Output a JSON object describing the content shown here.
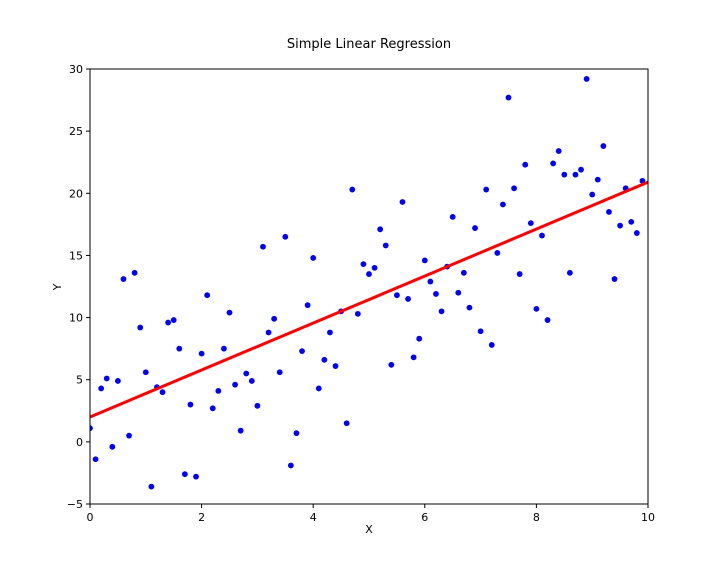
{
  "chart_data": {
    "type": "scatter",
    "title": "Simple Linear Regression",
    "xlabel": "X",
    "ylabel": "Y",
    "xlim": [
      0,
      10
    ],
    "ylim": [
      -5,
      30
    ],
    "xticks": [
      0,
      2,
      4,
      6,
      8,
      10
    ],
    "yticks": [
      -5,
      0,
      5,
      10,
      15,
      20,
      25,
      30
    ],
    "ytick_labels": [
      "−5",
      "0",
      "5",
      "10",
      "15",
      "20",
      "25",
      "30"
    ],
    "grid": false,
    "series": [
      {
        "kind": "scatter",
        "color": "#0000ff",
        "points": [
          [
            0.0,
            1.1
          ],
          [
            0.1,
            -1.4
          ],
          [
            0.2,
            4.3
          ],
          [
            0.3,
            5.1
          ],
          [
            0.4,
            -0.4
          ],
          [
            0.5,
            4.9
          ],
          [
            0.6,
            13.1
          ],
          [
            0.7,
            0.5
          ],
          [
            0.8,
            13.6
          ],
          [
            0.9,
            9.2
          ],
          [
            1.0,
            5.6
          ],
          [
            1.1,
            -3.6
          ],
          [
            1.2,
            4.4
          ],
          [
            1.3,
            4.0
          ],
          [
            1.4,
            9.6
          ],
          [
            1.5,
            9.8
          ],
          [
            1.6,
            7.5
          ],
          [
            1.7,
            -2.6
          ],
          [
            1.8,
            3.0
          ],
          [
            1.9,
            -2.8
          ],
          [
            2.0,
            7.1
          ],
          [
            2.1,
            11.8
          ],
          [
            2.2,
            2.7
          ],
          [
            2.3,
            4.1
          ],
          [
            2.4,
            7.5
          ],
          [
            2.5,
            10.4
          ],
          [
            2.6,
            4.6
          ],
          [
            2.7,
            0.9
          ],
          [
            2.8,
            5.5
          ],
          [
            2.9,
            4.9
          ],
          [
            3.0,
            2.9
          ],
          [
            3.1,
            15.7
          ],
          [
            3.2,
            8.8
          ],
          [
            3.3,
            9.9
          ],
          [
            3.4,
            5.6
          ],
          [
            3.5,
            16.5
          ],
          [
            3.6,
            -1.9
          ],
          [
            3.7,
            0.7
          ],
          [
            3.8,
            7.3
          ],
          [
            3.9,
            11.0
          ],
          [
            4.0,
            14.8
          ],
          [
            4.1,
            4.3
          ],
          [
            4.2,
            6.6
          ],
          [
            4.3,
            8.8
          ],
          [
            4.4,
            6.1
          ],
          [
            4.5,
            10.5
          ],
          [
            4.6,
            1.5
          ],
          [
            4.7,
            20.3
          ],
          [
            4.8,
            10.3
          ],
          [
            4.9,
            14.3
          ],
          [
            5.0,
            13.5
          ],
          [
            5.1,
            14.0
          ],
          [
            5.2,
            17.1
          ],
          [
            5.3,
            15.8
          ],
          [
            5.4,
            6.2
          ],
          [
            5.5,
            11.8
          ],
          [
            5.6,
            19.3
          ],
          [
            5.7,
            11.5
          ],
          [
            5.8,
            6.8
          ],
          [
            5.9,
            8.3
          ],
          [
            6.0,
            14.6
          ],
          [
            6.1,
            12.9
          ],
          [
            6.2,
            11.9
          ],
          [
            6.3,
            10.5
          ],
          [
            6.4,
            14.1
          ],
          [
            6.5,
            18.1
          ],
          [
            6.6,
            12.0
          ],
          [
            6.7,
            13.6
          ],
          [
            6.8,
            10.8
          ],
          [
            6.9,
            17.2
          ],
          [
            7.0,
            8.9
          ],
          [
            7.1,
            20.3
          ],
          [
            7.2,
            7.8
          ],
          [
            7.3,
            15.2
          ],
          [
            7.4,
            19.1
          ],
          [
            7.5,
            27.7
          ],
          [
            7.6,
            20.4
          ],
          [
            7.7,
            13.5
          ],
          [
            7.8,
            22.3
          ],
          [
            7.9,
            17.6
          ],
          [
            8.0,
            10.7
          ],
          [
            8.1,
            16.6
          ],
          [
            8.2,
            9.8
          ],
          [
            8.3,
            22.4
          ],
          [
            8.4,
            23.4
          ],
          [
            8.5,
            21.5
          ],
          [
            8.6,
            13.6
          ],
          [
            8.7,
            21.5
          ],
          [
            8.8,
            21.9
          ],
          [
            8.9,
            29.2
          ],
          [
            9.0,
            19.9
          ],
          [
            9.1,
            21.1
          ],
          [
            9.2,
            23.8
          ],
          [
            9.3,
            18.5
          ],
          [
            9.4,
            13.1
          ],
          [
            9.5,
            17.4
          ],
          [
            9.6,
            20.4
          ],
          [
            9.7,
            17.7
          ],
          [
            9.8,
            16.8
          ],
          [
            9.9,
            21.0
          ]
        ]
      },
      {
        "kind": "line",
        "color": "#ff0000",
        "points": [
          [
            0,
            2.0
          ],
          [
            10,
            20.9
          ]
        ]
      }
    ]
  }
}
